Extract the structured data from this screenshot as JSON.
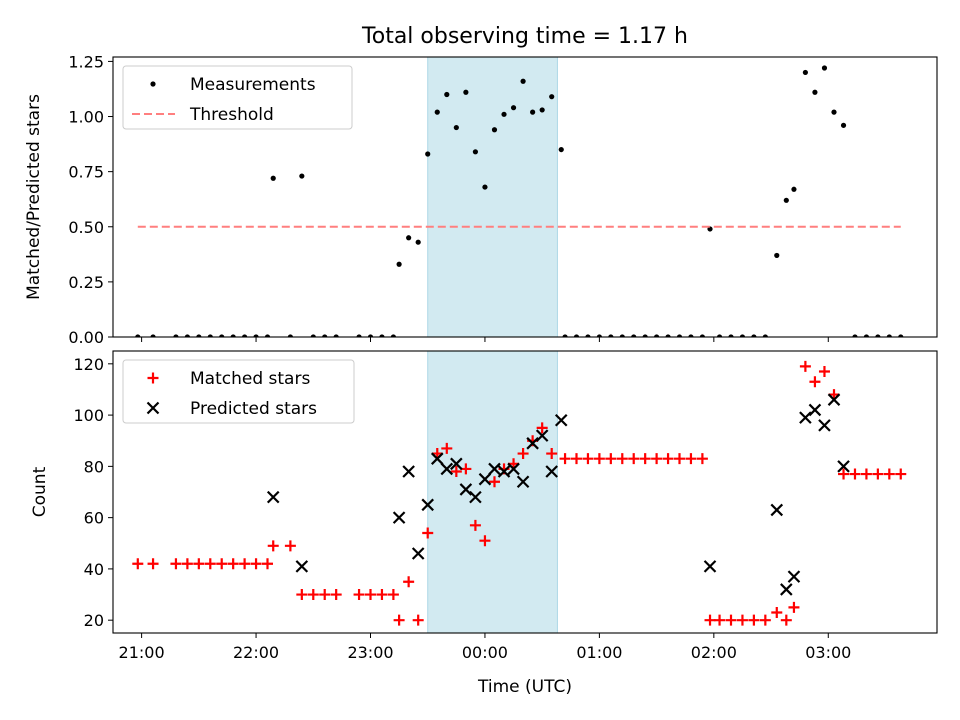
{
  "chart_data": {
    "type": "scatter",
    "title": "Total observing time = 1.17 h",
    "xlabel": "Time (UTC)",
    "x_ticks": [
      "21:00",
      "22:00",
      "23:00",
      "00:00",
      "01:00",
      "02:00",
      "03:00"
    ],
    "highlight_span": {
      "start": "23:30",
      "end": "00:38",
      "color": "#add8e6"
    },
    "panels": [
      {
        "ylabel": "Matched/Predicted stars",
        "ylim": [
          0,
          1.27
        ],
        "y_ticks": [
          "0.00",
          "0.25",
          "0.50",
          "0.75",
          "1.00",
          "1.25"
        ],
        "legend_position": "top-left",
        "series": [
          {
            "name": "Measurements",
            "marker": "dot",
            "color": "#000000",
            "points": [
              [
                "20:58",
                0
              ],
              [
                "21:06",
                0
              ],
              [
                "21:18",
                0
              ],
              [
                "21:24",
                0
              ],
              [
                "21:30",
                0
              ],
              [
                "21:36",
                0
              ],
              [
                "21:42",
                0
              ],
              [
                "21:48",
                0
              ],
              [
                "21:54",
                0
              ],
              [
                "22:00",
                0
              ],
              [
                "22:06",
                0
              ],
              [
                "22:09",
                0.72
              ],
              [
                "22:18",
                0
              ],
              [
                "22:24",
                0.73
              ],
              [
                "22:30",
                0
              ],
              [
                "22:36",
                0
              ],
              [
                "22:42",
                0
              ],
              [
                "22:54",
                0
              ],
              [
                "23:00",
                0
              ],
              [
                "23:06",
                0
              ],
              [
                "23:12",
                0
              ],
              [
                "23:15",
                0.33
              ],
              [
                "23:20",
                0.45
              ],
              [
                "23:25",
                0.43
              ],
              [
                "23:30",
                0.83
              ],
              [
                "23:35",
                1.02
              ],
              [
                "23:40",
                1.1
              ],
              [
                "23:45",
                0.95
              ],
              [
                "23:50",
                1.11
              ],
              [
                "23:55",
                0.84
              ],
              [
                "00:00",
                0.68
              ],
              [
                "00:05",
                0.94
              ],
              [
                "00:10",
                1.01
              ],
              [
                "00:15",
                1.04
              ],
              [
                "00:20",
                1.16
              ],
              [
                "00:25",
                1.02
              ],
              [
                "00:30",
                1.03
              ],
              [
                "00:35",
                1.09
              ],
              [
                "00:40",
                0.85
              ],
              [
                "00:42",
                0
              ],
              [
                "00:48",
                0
              ],
              [
                "00:54",
                0
              ],
              [
                "01:00",
                0
              ],
              [
                "01:06",
                0
              ],
              [
                "01:12",
                0
              ],
              [
                "01:18",
                0
              ],
              [
                "01:24",
                0
              ],
              [
                "01:30",
                0
              ],
              [
                "01:36",
                0
              ],
              [
                "01:42",
                0
              ],
              [
                "01:48",
                0
              ],
              [
                "01:54",
                0
              ],
              [
                "01:58",
                0.49
              ],
              [
                "02:03",
                0
              ],
              [
                "02:09",
                0
              ],
              [
                "02:15",
                0
              ],
              [
                "02:21",
                0
              ],
              [
                "02:27",
                0
              ],
              [
                "02:33",
                0.37
              ],
              [
                "02:38",
                0.62
              ],
              [
                "02:42",
                0.67
              ],
              [
                "02:48",
                1.2
              ],
              [
                "02:53",
                1.11
              ],
              [
                "02:58",
                1.22
              ],
              [
                "03:03",
                1.02
              ],
              [
                "03:08",
                0.96
              ],
              [
                "03:14",
                0
              ],
              [
                "03:20",
                0
              ],
              [
                "03:26",
                0
              ],
              [
                "03:32",
                0
              ],
              [
                "03:38",
                0
              ]
            ]
          },
          {
            "name": "Threshold",
            "line": "dashed",
            "color": "#ff7f7f",
            "points": [
              [
                "20:58",
                0.5
              ],
              [
                "03:38",
                0.5
              ]
            ]
          }
        ]
      },
      {
        "ylabel": "Count",
        "ylim": [
          15,
          125
        ],
        "y_ticks": [
          "20",
          "40",
          "60",
          "80",
          "100",
          "120"
        ],
        "legend_position": "top-left",
        "series": [
          {
            "name": "Matched stars",
            "marker": "plus",
            "color": "#ff0000",
            "points": [
              [
                "20:58",
                42
              ],
              [
                "21:06",
                42
              ],
              [
                "21:18",
                42
              ],
              [
                "21:24",
                42
              ],
              [
                "21:30",
                42
              ],
              [
                "21:36",
                42
              ],
              [
                "21:42",
                42
              ],
              [
                "21:48",
                42
              ],
              [
                "21:54",
                42
              ],
              [
                "22:00",
                42
              ],
              [
                "22:06",
                42
              ],
              [
                "22:09",
                49
              ],
              [
                "22:18",
                49
              ],
              [
                "22:24",
                30
              ],
              [
                "22:30",
                30
              ],
              [
                "22:36",
                30
              ],
              [
                "22:42",
                30
              ],
              [
                "22:54",
                30
              ],
              [
                "23:00",
                30
              ],
              [
                "23:06",
                30
              ],
              [
                "23:12",
                30
              ],
              [
                "23:15",
                20
              ],
              [
                "23:20",
                35
              ],
              [
                "23:25",
                20
              ],
              [
                "23:30",
                54
              ],
              [
                "23:35",
                85
              ],
              [
                "23:40",
                87
              ],
              [
                "23:45",
                78
              ],
              [
                "23:50",
                79
              ],
              [
                "23:55",
                57
              ],
              [
                "00:00",
                51
              ],
              [
                "00:05",
                74
              ],
              [
                "00:10",
                79
              ],
              [
                "00:15",
                81
              ],
              [
                "00:20",
                85
              ],
              [
                "00:25",
                90
              ],
              [
                "00:30",
                95
              ],
              [
                "00:35",
                85
              ],
              [
                "00:42",
                83
              ],
              [
                "00:48",
                83
              ],
              [
                "00:54",
                83
              ],
              [
                "01:00",
                83
              ],
              [
                "01:06",
                83
              ],
              [
                "01:12",
                83
              ],
              [
                "01:18",
                83
              ],
              [
                "01:24",
                83
              ],
              [
                "01:30",
                83
              ],
              [
                "01:36",
                83
              ],
              [
                "01:42",
                83
              ],
              [
                "01:48",
                83
              ],
              [
                "01:54",
                83
              ],
              [
                "01:58",
                20
              ],
              [
                "02:03",
                20
              ],
              [
                "02:09",
                20
              ],
              [
                "02:15",
                20
              ],
              [
                "02:21",
                20
              ],
              [
                "02:27",
                20
              ],
              [
                "02:33",
                23
              ],
              [
                "02:38",
                20
              ],
              [
                "02:42",
                25
              ],
              [
                "02:48",
                119
              ],
              [
                "02:53",
                113
              ],
              [
                "02:58",
                117
              ],
              [
                "03:03",
                108
              ],
              [
                "03:08",
                77
              ],
              [
                "03:14",
                77
              ],
              [
                "03:20",
                77
              ],
              [
                "03:26",
                77
              ],
              [
                "03:32",
                77
              ],
              [
                "03:38",
                77
              ]
            ]
          },
          {
            "name": "Predicted stars",
            "marker": "x",
            "color": "#000000",
            "points": [
              [
                "22:09",
                68
              ],
              [
                "22:24",
                41
              ],
              [
                "23:15",
                60
              ],
              [
                "23:20",
                78
              ],
              [
                "23:25",
                46
              ],
              [
                "23:30",
                65
              ],
              [
                "23:35",
                83
              ],
              [
                "23:40",
                79
              ],
              [
                "23:45",
                81
              ],
              [
                "23:50",
                71
              ],
              [
                "23:55",
                68
              ],
              [
                "00:00",
                75
              ],
              [
                "00:05",
                79
              ],
              [
                "00:10",
                78
              ],
              [
                "00:15",
                79
              ],
              [
                "00:20",
                74
              ],
              [
                "00:25",
                89
              ],
              [
                "00:30",
                92
              ],
              [
                "00:35",
                78
              ],
              [
                "00:40",
                98
              ],
              [
                "01:58",
                41
              ],
              [
                "02:33",
                63
              ],
              [
                "02:38",
                32
              ],
              [
                "02:42",
                37
              ],
              [
                "02:48",
                99
              ],
              [
                "02:53",
                102
              ],
              [
                "02:58",
                96
              ],
              [
                "03:03",
                106
              ],
              [
                "03:08",
                80
              ]
            ]
          }
        ]
      }
    ]
  }
}
